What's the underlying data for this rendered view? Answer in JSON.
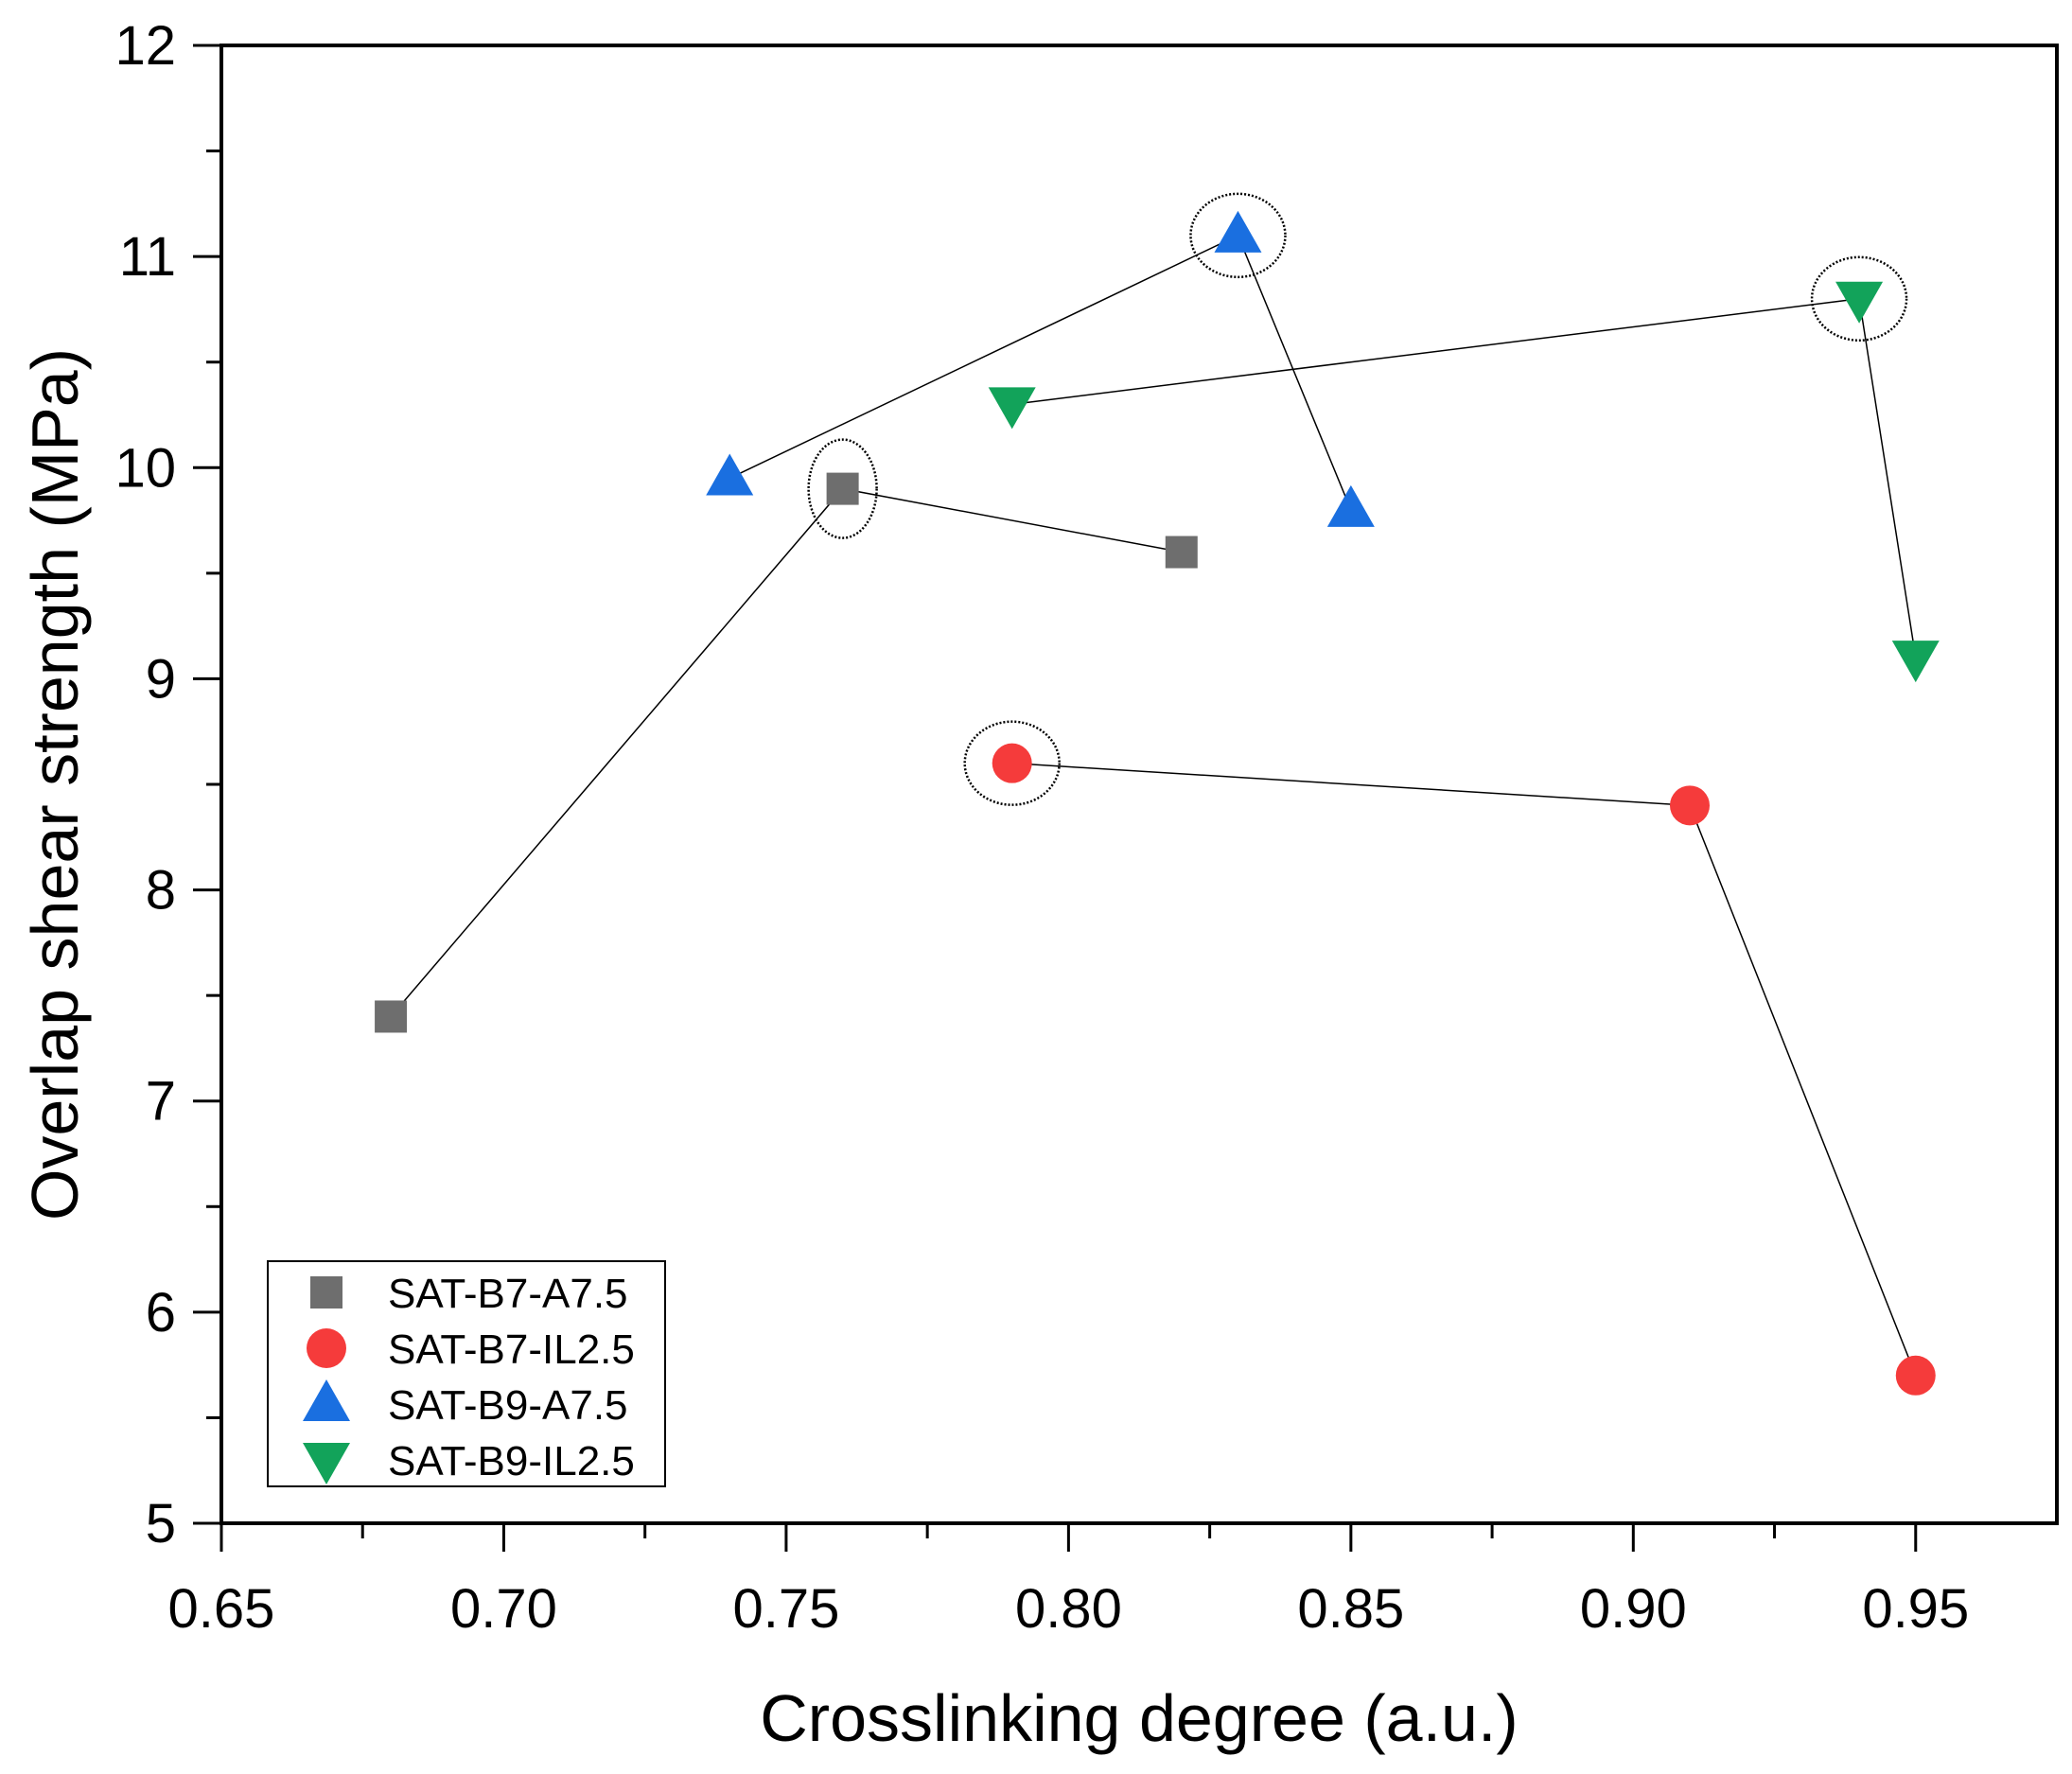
{
  "chart_data": {
    "type": "scatter",
    "title": "",
    "xlabel": "Crosslinking degree (a.u.)",
    "ylabel": "Overlap shear strength (MPa)",
    "xlim": [
      0.65,
      0.975
    ],
    "ylim": [
      5,
      12
    ],
    "x_major_ticks": [
      0.65,
      0.7,
      0.75,
      0.8,
      0.85,
      0.9,
      0.95
    ],
    "x_tick_labels": [
      "0.65",
      "0.70",
      "0.75",
      "0.80",
      "0.85",
      "0.90",
      "0.95"
    ],
    "y_major_ticks": [
      5,
      6,
      7,
      8,
      9,
      10,
      11,
      12
    ],
    "y_tick_labels": [
      "5",
      "6",
      "7",
      "8",
      "9",
      "10",
      "11",
      "12"
    ],
    "grid": false,
    "legend_position": "bottom-left",
    "series": [
      {
        "name": "SAT-B7-A7.5",
        "marker": "square",
        "color": "#6e6e6e",
        "x": [
          0.68,
          0.76,
          0.82
        ],
        "y": [
          7.4,
          9.9,
          9.6
        ],
        "highlighted_index": 1
      },
      {
        "name": "SAT-B7-IL2.5",
        "marker": "circle",
        "color": "#f53b3b",
        "x": [
          0.79,
          0.91,
          0.95
        ],
        "y": [
          8.6,
          8.4,
          5.7
        ],
        "highlighted_index": 0
      },
      {
        "name": "SAT-B9-A7.5",
        "marker": "triangle-up",
        "color": "#1a6fe0",
        "x": [
          0.74,
          0.83,
          0.85
        ],
        "y": [
          9.95,
          11.1,
          9.8
        ],
        "highlighted_index": 1
      },
      {
        "name": "SAT-B9-IL2.5",
        "marker": "triangle-down",
        "color": "#12a35a",
        "x": [
          0.79,
          0.94,
          0.95
        ],
        "y": [
          10.3,
          10.8,
          9.1
        ],
        "highlighted_index": 1
      }
    ]
  }
}
